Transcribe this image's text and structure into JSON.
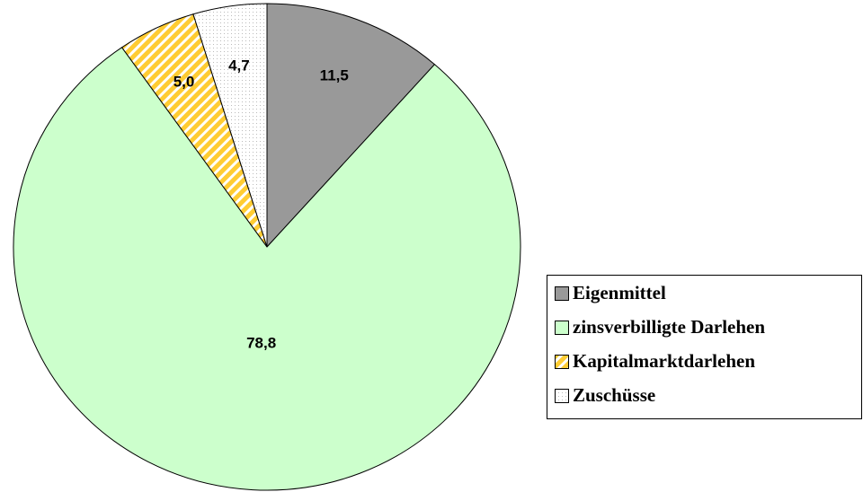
{
  "chart_data": {
    "type": "pie",
    "categories": [
      "Eigenmittel",
      "zinsverbilligte Darlehen",
      "Kapitalmarktdarlehen",
      "Zuschüsse"
    ],
    "values": [
      11.5,
      78.8,
      5.0,
      4.7
    ],
    "value_labels": [
      "11,5",
      "78,8",
      "5,0",
      "4,7"
    ],
    "colors": [
      "#999999",
      "#ccffcc",
      "#ffcc33",
      "#ffffff"
    ],
    "legend": "right"
  }
}
